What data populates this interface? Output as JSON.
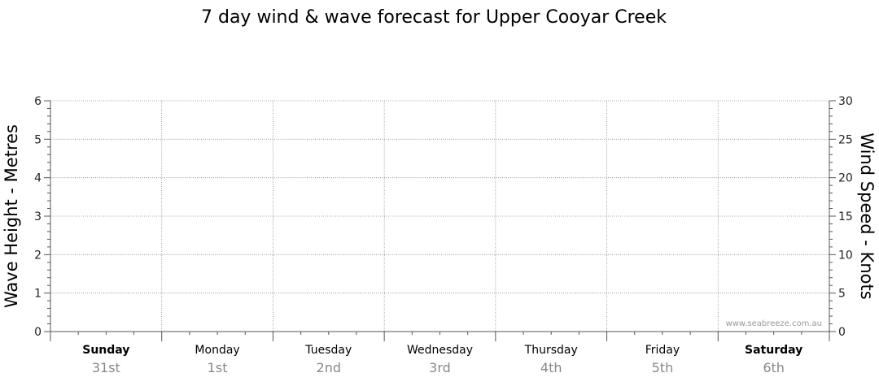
{
  "chart_data": {
    "type": "line",
    "title": "7 day wind & wave forecast for Upper Cooyar Creek",
    "ylabel_left": "Wave Height - Metres",
    "ylabel_right": "Wind Speed - Knots",
    "ylim_left": [
      0,
      6
    ],
    "ylim_right": [
      0,
      30
    ],
    "yticks_left": [
      "0",
      "1",
      "2",
      "3",
      "4",
      "5",
      "6"
    ],
    "yticks_right": [
      "0",
      "5",
      "10",
      "15",
      "20",
      "25",
      "30"
    ],
    "days": [
      {
        "name": "Sunday",
        "date": "31st",
        "bold": true
      },
      {
        "name": "Monday",
        "date": "1st",
        "bold": false
      },
      {
        "name": "Tuesday",
        "date": "2nd",
        "bold": false
      },
      {
        "name": "Wednesday",
        "date": "3rd",
        "bold": false
      },
      {
        "name": "Thursday",
        "date": "4th",
        "bold": false
      },
      {
        "name": "Friday",
        "date": "5th",
        "bold": false
      },
      {
        "name": "Saturday",
        "date": "6th",
        "bold": true
      }
    ],
    "grid": true,
    "series": [],
    "watermark": "www.seabreeze.com.au"
  }
}
